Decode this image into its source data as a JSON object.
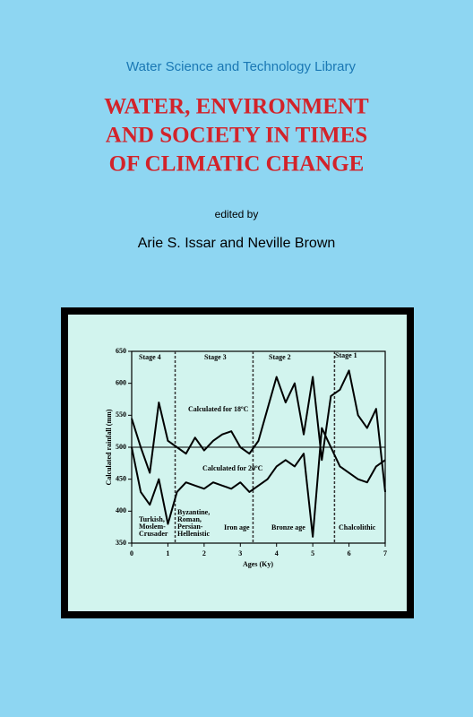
{
  "cover": {
    "series": "Water Science and Technology Library",
    "title": [
      "WATER, ENVIRONMENT",
      "AND SOCIETY IN TIMES",
      "OF CLIMATIC CHANGE"
    ],
    "edited_by": "edited by",
    "editors": "Arie S. Issar and Neville Brown"
  },
  "chart_data": {
    "type": "line",
    "xlabel": "Ages (Ky)",
    "ylabel": "Calculated rainfall (mm)",
    "x": [
      0,
      0.25,
      0.5,
      0.75,
      1,
      1.25,
      1.5,
      1.75,
      2,
      2.25,
      2.5,
      2.75,
      3,
      3.25,
      3.5,
      3.75,
      4,
      4.25,
      4.5,
      4.75,
      5,
      5.25,
      5.5,
      5.75,
      6,
      6.25,
      6.5,
      6.75,
      7
    ],
    "series": [
      {
        "name": "Calculated for 18ºC",
        "color": "#000000",
        "values": [
          545,
          500,
          460,
          570,
          510,
          500,
          490,
          515,
          495,
          510,
          520,
          525,
          500,
          490,
          510,
          560,
          610,
          570,
          600,
          520,
          610,
          480,
          580,
          590,
          620,
          550,
          530,
          560,
          430
        ]
      },
      {
        "name": "Calculated for 20ºC",
        "color": "#000000",
        "values": [
          500,
          430,
          410,
          450,
          380,
          430,
          445,
          440,
          435,
          445,
          440,
          435,
          445,
          430,
          440,
          450,
          470,
          480,
          470,
          490,
          360,
          530,
          500,
          470,
          460,
          450,
          445,
          470,
          480
        ]
      }
    ],
    "xlim": [
      0,
      7
    ],
    "ylim": [
      350,
      650
    ],
    "xticks": [
      0,
      1,
      2,
      3,
      4,
      5,
      6,
      7
    ],
    "yticks": [
      350,
      400,
      450,
      500,
      550,
      600,
      650
    ],
    "hline": 500,
    "stage_boundaries": [
      1.2,
      3.35,
      5.6
    ],
    "stages": [
      "Stage 4",
      "Stage 3",
      "Stage 2",
      "Stage 1"
    ],
    "periods": [
      [
        "Turkish,",
        "Moslem-",
        "Crusader"
      ],
      [
        "Byzantine,",
        "Roman,",
        "Persian-",
        "Hellenistic"
      ],
      [
        "Iron age"
      ],
      [
        "Bronze age"
      ],
      [
        "Chalcolithic"
      ]
    ]
  }
}
